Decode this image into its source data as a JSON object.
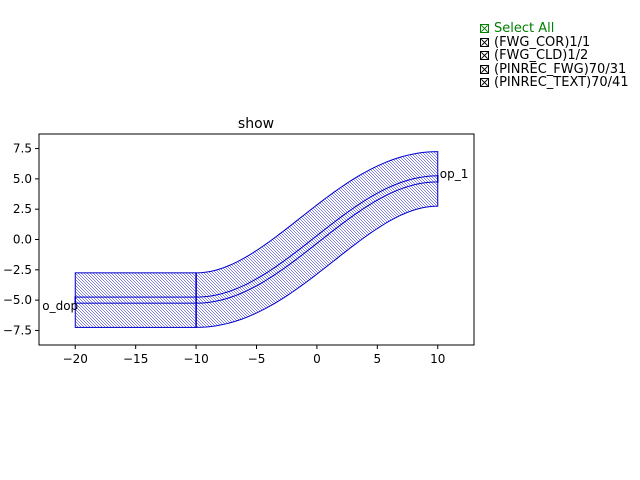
{
  "chart_data": {
    "type": "layout",
    "title": "show",
    "xlim": [
      -23,
      13
    ],
    "ylim": [
      -8.7,
      8.7
    ],
    "x_ticks": [
      -20,
      -15,
      -10,
      -5,
      0,
      5,
      10
    ],
    "x_tick_labels": [
      "−20",
      "−15",
      "−10",
      "−5",
      "0",
      "5",
      "10"
    ],
    "y_ticks": [
      7.5,
      5.0,
      2.5,
      0.0,
      -2.5,
      -5.0,
      -7.5
    ],
    "y_tick_labels": [
      "7.5",
      "5.0",
      "2.5",
      "0.0",
      "−2.5",
      "−5.0",
      "−7.5"
    ],
    "straight_section": {
      "x": [
        -20,
        -10
      ],
      "y_center": -5,
      "core_half_width": 0.25,
      "clad_half_width": 2.25
    },
    "bend_section": {
      "x": [
        -10,
        10
      ],
      "y": [
        -5,
        5
      ],
      "core_half_width": 0.25,
      "clad_half_width": 2.25
    },
    "ports": [
      {
        "name": "o_dop",
        "label": "o_dop",
        "x": -20,
        "y": -5
      },
      {
        "name": "op_1",
        "label": "op_1",
        "x": 10,
        "y": 5
      }
    ],
    "outline_color": "#0000cc"
  },
  "legend": {
    "select_all": "Select All",
    "items": [
      {
        "label": "(FWG_COR)1/1"
      },
      {
        "label": "(FWG_CLD)1/2"
      },
      {
        "label": "(PINREC_FWG)70/31"
      },
      {
        "label": "(PINREC_TEXT)70/41"
      }
    ]
  }
}
